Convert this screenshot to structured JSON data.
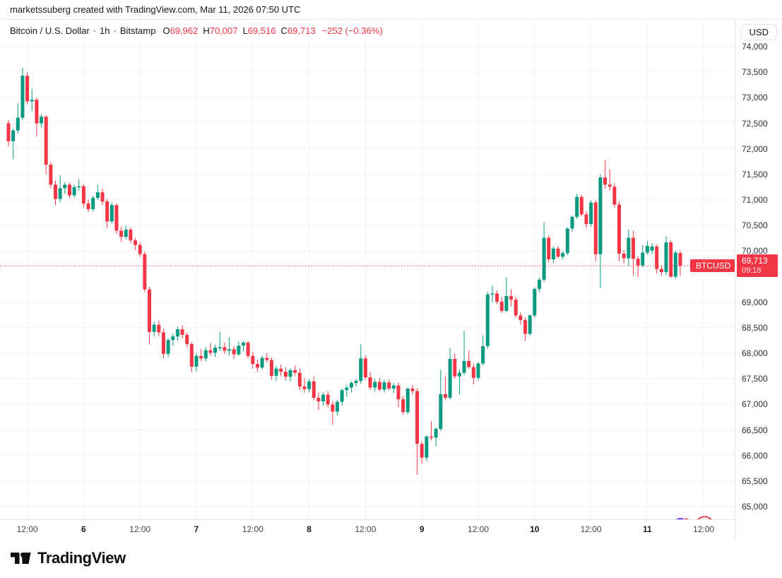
{
  "attribution": {
    "text": "marketssuberg created with TradingView.com, Mar 11, 2026 07:50 UTC"
  },
  "header": {
    "symbol_title": "Bitcoin / U.S. Dollar",
    "interval": "1h",
    "exchange": "Bitstamp",
    "ohlc": [
      {
        "label": "O",
        "value": "69,962"
      },
      {
        "label": "H",
        "value": "70,007"
      },
      {
        "label": "L",
        "value": "69,516"
      },
      {
        "label": "C",
        "value": "69,713"
      }
    ],
    "change": "−252 (−0.36%)"
  },
  "price_scale": {
    "currency_button": "USD",
    "tick_values": [
      74000,
      73500,
      73000,
      72500,
      72000,
      71500,
      71000,
      70500,
      70000,
      69000,
      68500,
      68000,
      67500,
      67000,
      66500,
      66000,
      65500,
      65000
    ]
  },
  "last_price": {
    "symbol_label": "BTCUSD",
    "price": "69,713",
    "price_value": 69713,
    "countdown": "09:18"
  },
  "time_scale": {
    "ticks": [
      {
        "label": "12:00",
        "hour": 4,
        "day": false
      },
      {
        "label": "6",
        "hour": 16,
        "day": true
      },
      {
        "label": "12:00",
        "hour": 28,
        "day": false
      },
      {
        "label": "7",
        "hour": 40,
        "day": true
      },
      {
        "label": "12:00",
        "hour": 52,
        "day": false
      },
      {
        "label": "8",
        "hour": 64,
        "day": true
      },
      {
        "label": "12:00",
        "hour": 76,
        "day": false
      },
      {
        "label": "9",
        "hour": 88,
        "day": true
      },
      {
        "label": "12:00",
        "hour": 100,
        "day": false
      },
      {
        "label": "10",
        "hour": 112,
        "day": true
      },
      {
        "label": "12:00",
        "hour": 124,
        "day": false
      },
      {
        "label": "11",
        "hour": 136,
        "day": true
      },
      {
        "label": "12:00",
        "hour": 148,
        "day": false
      }
    ]
  },
  "footer": {
    "brand": "TradingView"
  },
  "colors": {
    "up": "#089981",
    "down": "#f23645",
    "grid": "#f0f2f5",
    "accent_red": "#f23645",
    "text": "#131722",
    "icon_purple": "#7e2ef2",
    "flag_red": "#d64045",
    "flag_blue": "#3c5ba0"
  },
  "chart_data": {
    "type": "candlestick",
    "symbol": "BTCUSD",
    "title": "Bitcoin / U.S. Dollar",
    "exchange": "Bitstamp",
    "interval": "1h",
    "start_time": "2026-03-05 08:00 UTC",
    "end_time": "2026-03-11 07:00 UTC",
    "price_range_visible": [
      64750,
      74530
    ],
    "grid": true,
    "last_close": 69713,
    "ohlc": [
      [
        72500,
        72560,
        72050,
        72150
      ],
      [
        72150,
        72400,
        71800,
        72360
      ],
      [
        72360,
        72890,
        72300,
        72610
      ],
      [
        72610,
        73590,
        72560,
        73430
      ],
      [
        73430,
        73500,
        72880,
        72930
      ],
      [
        72930,
        73170,
        72740,
        72960
      ],
      [
        72960,
        73000,
        72240,
        72500
      ],
      [
        72500,
        72680,
        72420,
        72630
      ],
      [
        72630,
        72660,
        71500,
        71690
      ],
      [
        71690,
        71750,
        71230,
        71300
      ],
      [
        71300,
        71380,
        70900,
        71020
      ],
      [
        71020,
        71480,
        70960,
        71230
      ],
      [
        71230,
        71350,
        71120,
        71300
      ],
      [
        71300,
        71340,
        71030,
        71090
      ],
      [
        71090,
        71300,
        71050,
        71250
      ],
      [
        71250,
        71410,
        71180,
        71270
      ],
      [
        71270,
        71310,
        70860,
        70930
      ],
      [
        70930,
        71010,
        70760,
        70820
      ],
      [
        70820,
        71080,
        70780,
        71040
      ],
      [
        71040,
        71300,
        71000,
        71150
      ],
      [
        71150,
        71220,
        70900,
        70970
      ],
      [
        70970,
        71020,
        70450,
        70580
      ],
      [
        70580,
        70950,
        70540,
        70900
      ],
      [
        70900,
        70930,
        70340,
        70400
      ],
      [
        70400,
        70480,
        70180,
        70280
      ],
      [
        70280,
        70500,
        70230,
        70420
      ],
      [
        70420,
        70460,
        70150,
        70210
      ],
      [
        70210,
        70260,
        70020,
        70120
      ],
      [
        70120,
        70170,
        69890,
        69940
      ],
      [
        69940,
        69990,
        69200,
        69250
      ],
      [
        69250,
        69300,
        68180,
        68420
      ],
      [
        68420,
        68620,
        68330,
        68560
      ],
      [
        68560,
        68640,
        68340,
        68410
      ],
      [
        68410,
        68480,
        67900,
        67990
      ],
      [
        67990,
        68300,
        67920,
        68260
      ],
      [
        68260,
        68390,
        68150,
        68330
      ],
      [
        68330,
        68520,
        68250,
        68470
      ],
      [
        68470,
        68550,
        68290,
        68360
      ],
      [
        68360,
        68400,
        68120,
        68180
      ],
      [
        68180,
        68220,
        67630,
        67740
      ],
      [
        67740,
        68000,
        67650,
        67950
      ],
      [
        67950,
        68080,
        67850,
        67900
      ],
      [
        67900,
        68120,
        67840,
        68060
      ],
      [
        68060,
        68200,
        67950,
        68010
      ],
      [
        68010,
        68170,
        67930,
        68110
      ],
      [
        68110,
        68420,
        68050,
        68120
      ],
      [
        68120,
        68210,
        67990,
        68050
      ],
      [
        68050,
        68310,
        67960,
        68080
      ],
      [
        68080,
        68140,
        67890,
        67980
      ],
      [
        67980,
        68230,
        67950,
        68150
      ],
      [
        68150,
        68240,
        68040,
        68210
      ],
      [
        68210,
        68240,
        67900,
        67950
      ],
      [
        67950,
        68030,
        67700,
        67790
      ],
      [
        67790,
        67880,
        67640,
        67720
      ],
      [
        67720,
        67960,
        67680,
        67910
      ],
      [
        67910,
        68010,
        67820,
        67870
      ],
      [
        67870,
        67920,
        67480,
        67560
      ],
      [
        67560,
        67750,
        67460,
        67700
      ],
      [
        67700,
        67780,
        67550,
        67640
      ],
      [
        67640,
        67730,
        67470,
        67540
      ],
      [
        67540,
        67710,
        67450,
        67670
      ],
      [
        67670,
        67760,
        67560,
        67620
      ],
      [
        67620,
        67700,
        67280,
        67350
      ],
      [
        67350,
        67520,
        67230,
        67300
      ],
      [
        67300,
        67500,
        67240,
        67450
      ],
      [
        67450,
        67550,
        67080,
        67130
      ],
      [
        67130,
        67230,
        66890,
        67060
      ],
      [
        67060,
        67240,
        66980,
        67190
      ],
      [
        67190,
        67260,
        66940,
        67000
      ],
      [
        67000,
        67060,
        66600,
        66860
      ],
      [
        66860,
        67090,
        66780,
        67050
      ],
      [
        67050,
        67310,
        66980,
        67280
      ],
      [
        67280,
        67380,
        67150,
        67330
      ],
      [
        67330,
        67450,
        67240,
        67420
      ],
      [
        67420,
        67500,
        67350,
        67460
      ],
      [
        67460,
        68180,
        67400,
        67900
      ],
      [
        67900,
        67960,
        67480,
        67530
      ],
      [
        67530,
        67640,
        67280,
        67330
      ],
      [
        67330,
        67500,
        67250,
        67440
      ],
      [
        67440,
        67520,
        67260,
        67290
      ],
      [
        67290,
        67480,
        67230,
        67430
      ],
      [
        67430,
        67490,
        67270,
        67310
      ],
      [
        67310,
        67420,
        67220,
        67370
      ],
      [
        67370,
        67430,
        66950,
        67100
      ],
      [
        67100,
        67160,
        66800,
        66850
      ],
      [
        66850,
        67330,
        66810,
        67310
      ],
      [
        67310,
        67380,
        67200,
        67260
      ],
      [
        67260,
        67310,
        65620,
        66230
      ],
      [
        66230,
        66280,
        65840,
        65960
      ],
      [
        65960,
        66400,
        65890,
        66370
      ],
      [
        66370,
        66670,
        66300,
        66350
      ],
      [
        66350,
        66550,
        66180,
        66520
      ],
      [
        66520,
        67680,
        66480,
        67200
      ],
      [
        67200,
        67550,
        67090,
        67130
      ],
      [
        67130,
        68100,
        67100,
        67890
      ],
      [
        67890,
        67990,
        67500,
        67550
      ],
      [
        67550,
        67680,
        67200,
        67620
      ],
      [
        67620,
        68440,
        67570,
        67850
      ],
      [
        67850,
        68050,
        67700,
        67730
      ],
      [
        67730,
        67800,
        67390,
        67520
      ],
      [
        67520,
        67830,
        67470,
        67800
      ],
      [
        67800,
        68350,
        67760,
        68140
      ],
      [
        68140,
        69200,
        68090,
        69150
      ],
      [
        69150,
        69320,
        68990,
        69170
      ],
      [
        69170,
        69230,
        68960,
        69010
      ],
      [
        69010,
        69100,
        68790,
        68830
      ],
      [
        68830,
        69490,
        68800,
        69120
      ],
      [
        69120,
        69250,
        68920,
        69050
      ],
      [
        69050,
        69110,
        68700,
        68740
      ],
      [
        68740,
        68800,
        68560,
        68650
      ],
      [
        68650,
        68700,
        68240,
        68380
      ],
      [
        68380,
        68760,
        68340,
        68740
      ],
      [
        68740,
        69290,
        68700,
        69260
      ],
      [
        69260,
        69480,
        69200,
        69440
      ],
      [
        69440,
        70560,
        69400,
        70260
      ],
      [
        70260,
        70310,
        69780,
        69840
      ],
      [
        69840,
        70090,
        69770,
        70050
      ],
      [
        70050,
        70100,
        69860,
        69890
      ],
      [
        69890,
        70000,
        69830,
        69960
      ],
      [
        69960,
        70470,
        69920,
        70440
      ],
      [
        70440,
        70700,
        70380,
        70670
      ],
      [
        70670,
        71120,
        70630,
        71060
      ],
      [
        71060,
        71100,
        70680,
        70720
      ],
      [
        70720,
        70780,
        70450,
        70530
      ],
      [
        70530,
        70990,
        70480,
        70950
      ],
      [
        70950,
        70990,
        69800,
        69940
      ],
      [
        69940,
        71500,
        69270,
        71440
      ],
      [
        71440,
        71780,
        71220,
        71300
      ],
      [
        71300,
        71600,
        71180,
        71260
      ],
      [
        71260,
        71330,
        70850,
        70910
      ],
      [
        70910,
        70970,
        69800,
        69950
      ],
      [
        69950,
        70020,
        69760,
        69860
      ],
      [
        69860,
        70420,
        69710,
        70260
      ],
      [
        70260,
        70400,
        69520,
        69850
      ],
      [
        69850,
        69900,
        69490,
        69720
      ],
      [
        69720,
        70120,
        69680,
        69970
      ],
      [
        69970,
        70200,
        69930,
        70100
      ],
      [
        70010,
        70160,
        69940,
        70090
      ],
      [
        70090,
        70130,
        69560,
        69650
      ],
      [
        69650,
        69720,
        69520,
        69590
      ],
      [
        69590,
        70290,
        69530,
        70170
      ],
      [
        70170,
        70210,
        69480,
        69500
      ],
      [
        69500,
        70010,
        69460,
        69970
      ],
      [
        69962,
        70007,
        69516,
        69713
      ]
    ]
  }
}
